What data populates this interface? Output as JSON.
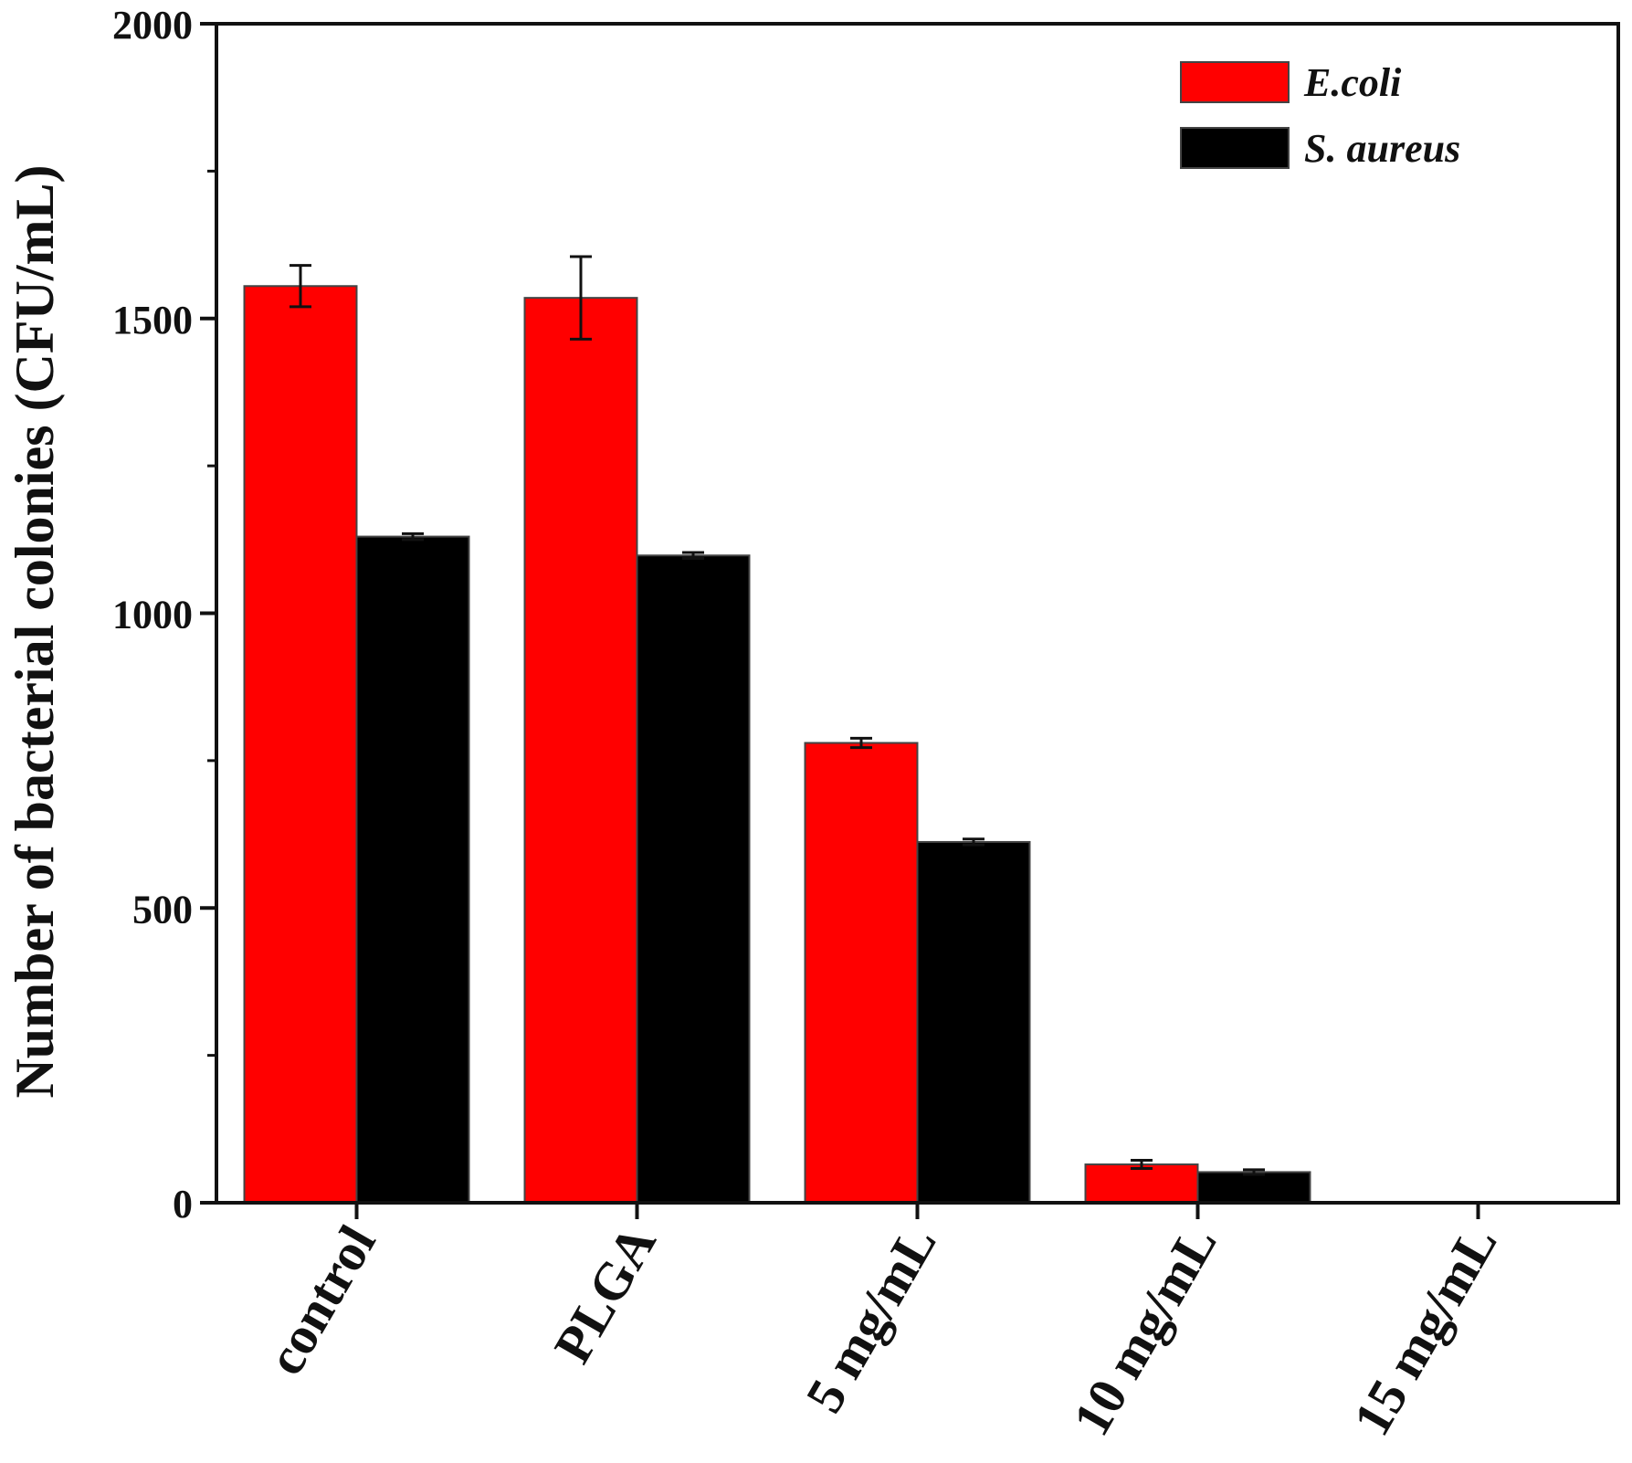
{
  "chart_data": {
    "type": "bar",
    "categories": [
      "control",
      "PLGA",
      "5 mg/mL",
      "10 mg/mL",
      "15 mg/mL"
    ],
    "series": [
      {
        "name": "E.coli",
        "color": "#ff0000",
        "values": [
          1555,
          1535,
          780,
          65,
          0
        ],
        "errors": [
          35,
          70,
          8,
          7,
          0
        ]
      },
      {
        "name": "S. aureus",
        "color": "#000000",
        "values": [
          1130,
          1098,
          612,
          52,
          0
        ],
        "errors": [
          5,
          5,
          5,
          4,
          0
        ]
      }
    ],
    "ylabel": "Number of bacterial colonies (CFU/mL)",
    "xlabel": "",
    "ylim": [
      0,
      2000
    ],
    "yticks": [
      0,
      500,
      1000,
      1500,
      2000
    ],
    "legend_position": "top-right",
    "grid": false
  }
}
